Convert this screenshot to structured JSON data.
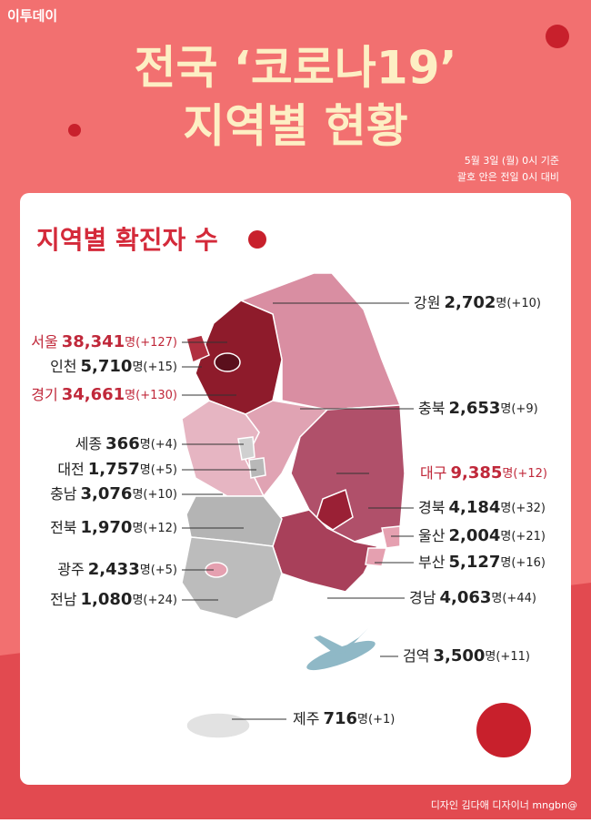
{
  "header": {
    "logo": "이투데이",
    "title_line1": "전국 ‘코로나19’",
    "title_line2": "지역별 현황",
    "note_line1": "5월 3일 (월) 0시 기준",
    "note_line2": "괄호 안은 전일 0시 대비"
  },
  "section_title": "지역별 확진자 수",
  "regions": [
    {
      "name": "강원",
      "count": "2,702",
      "unit": "명",
      "change": "(+10)"
    },
    {
      "name": "서울",
      "count": "38,341",
      "unit": "명",
      "change": "(+127)",
      "highlight": true
    },
    {
      "name": "인천",
      "count": "5,710",
      "unit": "명",
      "change": "(+15)"
    },
    {
      "name": "경기",
      "count": "34,661",
      "unit": "명",
      "change": "(+130)",
      "highlight": true
    },
    {
      "name": "충북",
      "count": "2,653",
      "unit": "명",
      "change": "(+9)"
    },
    {
      "name": "세종",
      "count": "366",
      "unit": "명",
      "change": "(+4)"
    },
    {
      "name": "대전",
      "count": "1,757",
      "unit": "명",
      "change": "(+5)"
    },
    {
      "name": "대구",
      "count": "9,385",
      "unit": "명",
      "change": "(+12)",
      "highlight": true
    },
    {
      "name": "충남",
      "count": "3,076",
      "unit": "명",
      "change": "(+10)"
    },
    {
      "name": "경북",
      "count": "4,184",
      "unit": "명",
      "change": "(+32)"
    },
    {
      "name": "전북",
      "count": "1,970",
      "unit": "명",
      "change": "(+12)"
    },
    {
      "name": "울산",
      "count": "2,004",
      "unit": "명",
      "change": "(+21)"
    },
    {
      "name": "부산",
      "count": "5,127",
      "unit": "명",
      "change": "(+16)"
    },
    {
      "name": "광주",
      "count": "2,433",
      "unit": "명",
      "change": "(+5)"
    },
    {
      "name": "전남",
      "count": "1,080",
      "unit": "명",
      "change": "(+24)"
    },
    {
      "name": "경남",
      "count": "4,063",
      "unit": "명",
      "change": "(+44)"
    },
    {
      "name": "검역",
      "count": "3,500",
      "unit": "명",
      "change": "(+11)"
    },
    {
      "name": "제주",
      "count": "716",
      "unit": "명",
      "change": "(+1)"
    }
  ],
  "footer": {
    "credit": "디자인 김다애 디자이너 mngbn@"
  }
}
